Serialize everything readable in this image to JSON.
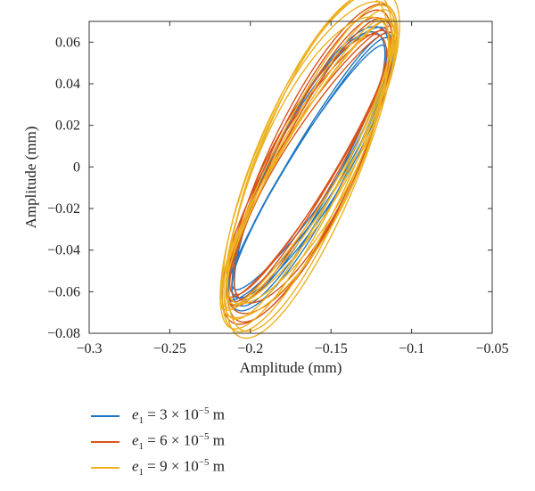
{
  "chart_data": {
    "type": "line",
    "xlabel": "Amplitude (mm)",
    "ylabel": "Amplitude (mm)",
    "xlim": [
      -0.3,
      -0.05
    ],
    "ylim": [
      -0.08,
      0.07
    ],
    "xticks": [
      -0.3,
      -0.25,
      -0.2,
      -0.15,
      -0.1,
      -0.05
    ],
    "xtick_labels": [
      "−0.3",
      "−0.25",
      "−0.2",
      "−0.15",
      "−0.1",
      "−0.05"
    ],
    "yticks": [
      -0.08,
      -0.06,
      -0.04,
      -0.02,
      0,
      0.02,
      0.04,
      0.06
    ],
    "ytick_labels": [
      "−0.08",
      "−0.06",
      "−0.04",
      "−0.02",
      "0",
      "0.02",
      "0.04",
      "0.06"
    ],
    "grid": false,
    "legend_position": "bottom",
    "series": [
      {
        "name": "e1 = 3 × 10⁻⁵ m",
        "legend_symbol": "e",
        "legend_subscript": "1",
        "legend_rest": " = 3 × 10",
        "legend_exponent": "−5",
        "legend_unit": " m",
        "color": "#1f77c4",
        "center": [
          -0.162,
          0.001
        ],
        "x_amplitude": 0.098,
        "y_amplitude": 0.057,
        "width": 0.011,
        "loops": 6
      },
      {
        "name": "e1 = 6 × 10⁻⁵ m",
        "legend_symbol": "e",
        "legend_subscript": "1",
        "legend_rest": " = 6 × 10",
        "legend_exponent": "−5",
        "legend_unit": " m",
        "color": "#d9541a",
        "center": [
          -0.163,
          0.001
        ],
        "x_amplitude": 0.102,
        "y_amplitude": 0.059,
        "width": 0.013,
        "loops": 8
      },
      {
        "name": "e1 = 9 × 10⁻⁵ m",
        "legend_symbol": "e",
        "legend_subscript": "1",
        "legend_rest": " = 9 × 10",
        "legend_exponent": "−5",
        "legend_unit": " m",
        "color": "#edb120",
        "center": [
          -0.164,
          0.001
        ],
        "x_amplitude": 0.106,
        "y_amplitude": 0.062,
        "width": 0.016,
        "loops": 10
      }
    ]
  }
}
